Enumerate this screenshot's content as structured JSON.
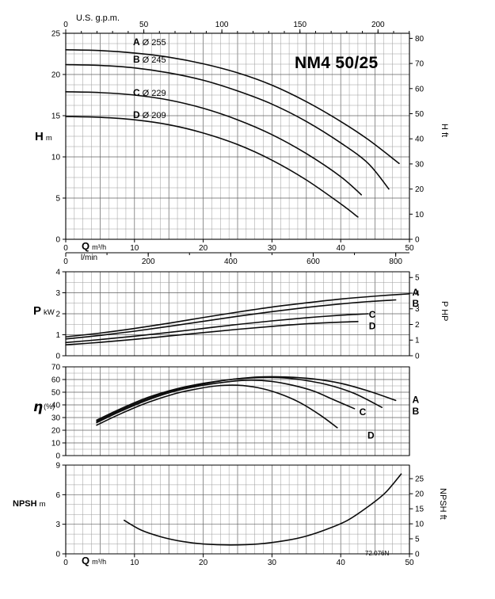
{
  "title": "NM4 50/25",
  "code": "72.076N",
  "labels": {
    "gpm": "U.S. g.p.m.",
    "h": "H",
    "h_unit": "m",
    "h_right": "H ft",
    "q": "Q",
    "q_unit": "m³/h",
    "lmin": "l/min",
    "p": "P",
    "p_unit": "kW",
    "p_right": "P HP",
    "eta": "η",
    "eta_unit": "(%)",
    "npsh": "NPSH",
    "npsh_unit": "m",
    "npsh_right": "NPSH ft"
  },
  "legend": [
    {
      "letter": "A",
      "diameter": "Ø 255"
    },
    {
      "letter": "B",
      "diameter": "Ø 245"
    },
    {
      "letter": "C",
      "diameter": "Ø 229"
    },
    {
      "letter": "D",
      "diameter": "Ø 209"
    }
  ],
  "chart_data": [
    {
      "id": "head-curve",
      "type": "line",
      "title": "NM4 50/25",
      "xlabel": "Q m³/h",
      "ylabel": "H m",
      "x_range": [
        0,
        50
      ],
      "y_range": [
        0,
        25
      ],
      "x_minor": 1.25,
      "x_major": 5,
      "y_minor": 1.25,
      "y_major": 5,
      "left_ticks": [
        0,
        5,
        10,
        15,
        20,
        25
      ],
      "right_axis": {
        "label": "H ft",
        "scale": 0.3048,
        "ticks": [
          0,
          10,
          20,
          30,
          40,
          50,
          60,
          70,
          80
        ]
      },
      "top_axis": {
        "label": "U.S. g.p.m.",
        "scale": 0.22712,
        "minor_step": 10,
        "ticks": [
          0,
          50,
          100,
          150,
          200
        ]
      },
      "bottom_axis": {
        "label": "Q m³/h",
        "ticks": [
          0,
          10,
          20,
          30,
          40,
          50
        ]
      },
      "second_bottom_axis": {
        "label": "l/min",
        "scale": 0.06,
        "minor_step": 100,
        "ticks": [
          0,
          200,
          400,
          600,
          800
        ]
      },
      "series": [
        {
          "name": "A",
          "impeller": "Ø 255",
          "points": [
            [
              0,
              23
            ],
            [
              5,
              22.9
            ],
            [
              10,
              22.6
            ],
            [
              15,
              22.1
            ],
            [
              20,
              21.3
            ],
            [
              25,
              20.2
            ],
            [
              30,
              18.7
            ],
            [
              35,
              16.7
            ],
            [
              40,
              14.3
            ],
            [
              44,
              12.1
            ],
            [
              48.5,
              9.2
            ]
          ]
        },
        {
          "name": "B",
          "impeller": "Ø 245",
          "points": [
            [
              0,
              21.2
            ],
            [
              5,
              21.1
            ],
            [
              10,
              20.8
            ],
            [
              15,
              20.2
            ],
            [
              20,
              19.3
            ],
            [
              25,
              18.0
            ],
            [
              30,
              16.4
            ],
            [
              35,
              14.3
            ],
            [
              40,
              11.7
            ],
            [
              44,
              9.2
            ],
            [
              47,
              6.1
            ]
          ]
        },
        {
          "name": "C",
          "impeller": "Ø 229",
          "points": [
            [
              0,
              17.9
            ],
            [
              5,
              17.8
            ],
            [
              10,
              17.5
            ],
            [
              15,
              16.9
            ],
            [
              20,
              15.9
            ],
            [
              25,
              14.5
            ],
            [
              30,
              12.7
            ],
            [
              35,
              10.4
            ],
            [
              40,
              7.6
            ],
            [
              43,
              5.4
            ]
          ]
        },
        {
          "name": "D",
          "impeller": "Ø 209",
          "points": [
            [
              0,
              14.9
            ],
            [
              5,
              14.8
            ],
            [
              10,
              14.5
            ],
            [
              15,
              13.9
            ],
            [
              20,
              12.9
            ],
            [
              25,
              11.5
            ],
            [
              30,
              9.6
            ],
            [
              35,
              7.2
            ],
            [
              40,
              4.3
            ],
            [
              42.5,
              2.7
            ]
          ]
        }
      ]
    },
    {
      "id": "power",
      "type": "line",
      "xlabel": "Q m³/h",
      "ylabel": "P kW",
      "x_range": [
        0,
        50
      ],
      "y_range": [
        0,
        4
      ],
      "x_minor": 1.25,
      "x_major": 5,
      "y_minor": 0.5,
      "y_major": 1,
      "left_ticks": [
        0,
        1,
        2,
        3,
        4
      ],
      "right_axis": {
        "label": "P HP",
        "scale": 0.7457,
        "ticks": [
          0,
          1,
          2,
          3,
          4,
          5
        ]
      },
      "series": [
        {
          "name": "A",
          "label_at": [
            50.9,
            3.02
          ],
          "points": [
            [
              0,
              0.9
            ],
            [
              5,
              1.08
            ],
            [
              10,
              1.3
            ],
            [
              15,
              1.55
            ],
            [
              20,
              1.82
            ],
            [
              25,
              2.08
            ],
            [
              30,
              2.32
            ],
            [
              35,
              2.52
            ],
            [
              40,
              2.7
            ],
            [
              45,
              2.84
            ],
            [
              50,
              2.95
            ]
          ]
        },
        {
          "name": "B",
          "label_at": [
            50.9,
            2.5
          ],
          "points": [
            [
              0,
              0.8
            ],
            [
              5,
              0.97
            ],
            [
              10,
              1.17
            ],
            [
              15,
              1.4
            ],
            [
              20,
              1.64
            ],
            [
              25,
              1.88
            ],
            [
              30,
              2.1
            ],
            [
              35,
              2.3
            ],
            [
              40,
              2.47
            ],
            [
              44,
              2.58
            ],
            [
              48,
              2.66
            ]
          ]
        },
        {
          "name": "C",
          "label_at": [
            44.6,
            1.97
          ],
          "points": [
            [
              0,
              0.63
            ],
            [
              5,
              0.77
            ],
            [
              10,
              0.93
            ],
            [
              15,
              1.11
            ],
            [
              20,
              1.3
            ],
            [
              25,
              1.49
            ],
            [
              30,
              1.66
            ],
            [
              35,
              1.81
            ],
            [
              40,
              1.93
            ],
            [
              44,
              2.0
            ]
          ]
        },
        {
          "name": "D",
          "label_at": [
            44.6,
            1.42
          ],
          "points": [
            [
              0,
              0.52
            ],
            [
              5,
              0.64
            ],
            [
              10,
              0.78
            ],
            [
              15,
              0.94
            ],
            [
              20,
              1.1
            ],
            [
              25,
              1.26
            ],
            [
              30,
              1.4
            ],
            [
              35,
              1.52
            ],
            [
              40,
              1.6
            ],
            [
              42.5,
              1.63
            ]
          ]
        }
      ]
    },
    {
      "id": "efficiency",
      "type": "line",
      "xlabel": "Q m³/h",
      "ylabel": "η (%)",
      "x_range": [
        0,
        50
      ],
      "y_range": [
        0,
        70
      ],
      "x_minor": 1.25,
      "x_major": 5,
      "y_minor": 5,
      "y_major": 10,
      "left_ticks": [
        0,
        10,
        20,
        30,
        40,
        50,
        60,
        70
      ],
      "series": [
        {
          "name": "A",
          "label_at": [
            50.9,
            44
          ],
          "points": [
            [
              4.5,
              28
            ],
            [
              8,
              37
            ],
            [
              12,
              46
            ],
            [
              16,
              52.5
            ],
            [
              20,
              57
            ],
            [
              24,
              60
            ],
            [
              28,
              62
            ],
            [
              32,
              62
            ],
            [
              36,
              60.5
            ],
            [
              40,
              57
            ],
            [
              44,
              51
            ],
            [
              48,
              43.5
            ]
          ]
        },
        {
          "name": "B",
          "label_at": [
            50.9,
            35
          ],
          "points": [
            [
              4.5,
              27
            ],
            [
              8,
              36
            ],
            [
              12,
              45
            ],
            [
              16,
              52
            ],
            [
              20,
              56.5
            ],
            [
              24,
              60
            ],
            [
              28,
              61.5
            ],
            [
              31,
              61.5
            ],
            [
              34,
              60
            ],
            [
              38,
              56
            ],
            [
              42,
              49
            ],
            [
              46,
              38
            ]
          ]
        },
        {
          "name": "C",
          "label_at": [
            43.2,
            34.5
          ],
          "points": [
            [
              4.5,
              26
            ],
            [
              8,
              35
            ],
            [
              12,
              44
            ],
            [
              16,
              51
            ],
            [
              20,
              55.5
            ],
            [
              24,
              58.5
            ],
            [
              27,
              59.5
            ],
            [
              30,
              58.5
            ],
            [
              33,
              55.5
            ],
            [
              36,
              51
            ],
            [
              39,
              44
            ],
            [
              42,
              37
            ]
          ]
        },
        {
          "name": "D",
          "label_at": [
            44.4,
            16
          ],
          "points": [
            [
              4.5,
              24
            ],
            [
              8,
              33
            ],
            [
              12,
              42
            ],
            [
              16,
              49
            ],
            [
              19,
              52.5
            ],
            [
              22,
              55
            ],
            [
              25,
              55.5
            ],
            [
              28,
              53.5
            ],
            [
              31,
              49
            ],
            [
              34,
              42
            ],
            [
              37,
              32
            ],
            [
              39.5,
              22
            ]
          ]
        }
      ]
    },
    {
      "id": "npsh",
      "type": "line",
      "xlabel": "Q m³/h",
      "ylabel": "NPSH m",
      "x_range": [
        0,
        50
      ],
      "y_range": [
        0,
        9
      ],
      "x_minor": 1.25,
      "x_major": 5,
      "y_minor": 1,
      "y_major": 3,
      "left_ticks": [
        0,
        3,
        6,
        9
      ],
      "right_axis": {
        "label": "NPSH ft",
        "scale": 0.3048,
        "ticks": [
          0,
          5,
          10,
          15,
          20,
          25
        ]
      },
      "bottom_axis": {
        "label": "Q m³/h",
        "ticks": [
          0,
          10,
          20,
          30,
          40,
          50
        ]
      },
      "series": [
        {
          "name": "NPSH",
          "points": [
            [
              8.5,
              3.4
            ],
            [
              11,
              2.4
            ],
            [
              14,
              1.7
            ],
            [
              17,
              1.25
            ],
            [
              20,
              1.0
            ],
            [
              24,
              0.9
            ],
            [
              28,
              1.0
            ],
            [
              32,
              1.35
            ],
            [
              35,
              1.8
            ],
            [
              38,
              2.5
            ],
            [
              41,
              3.4
            ],
            [
              44,
              4.8
            ],
            [
              46.5,
              6.2
            ],
            [
              48.8,
              8.1
            ]
          ]
        }
      ]
    }
  ]
}
